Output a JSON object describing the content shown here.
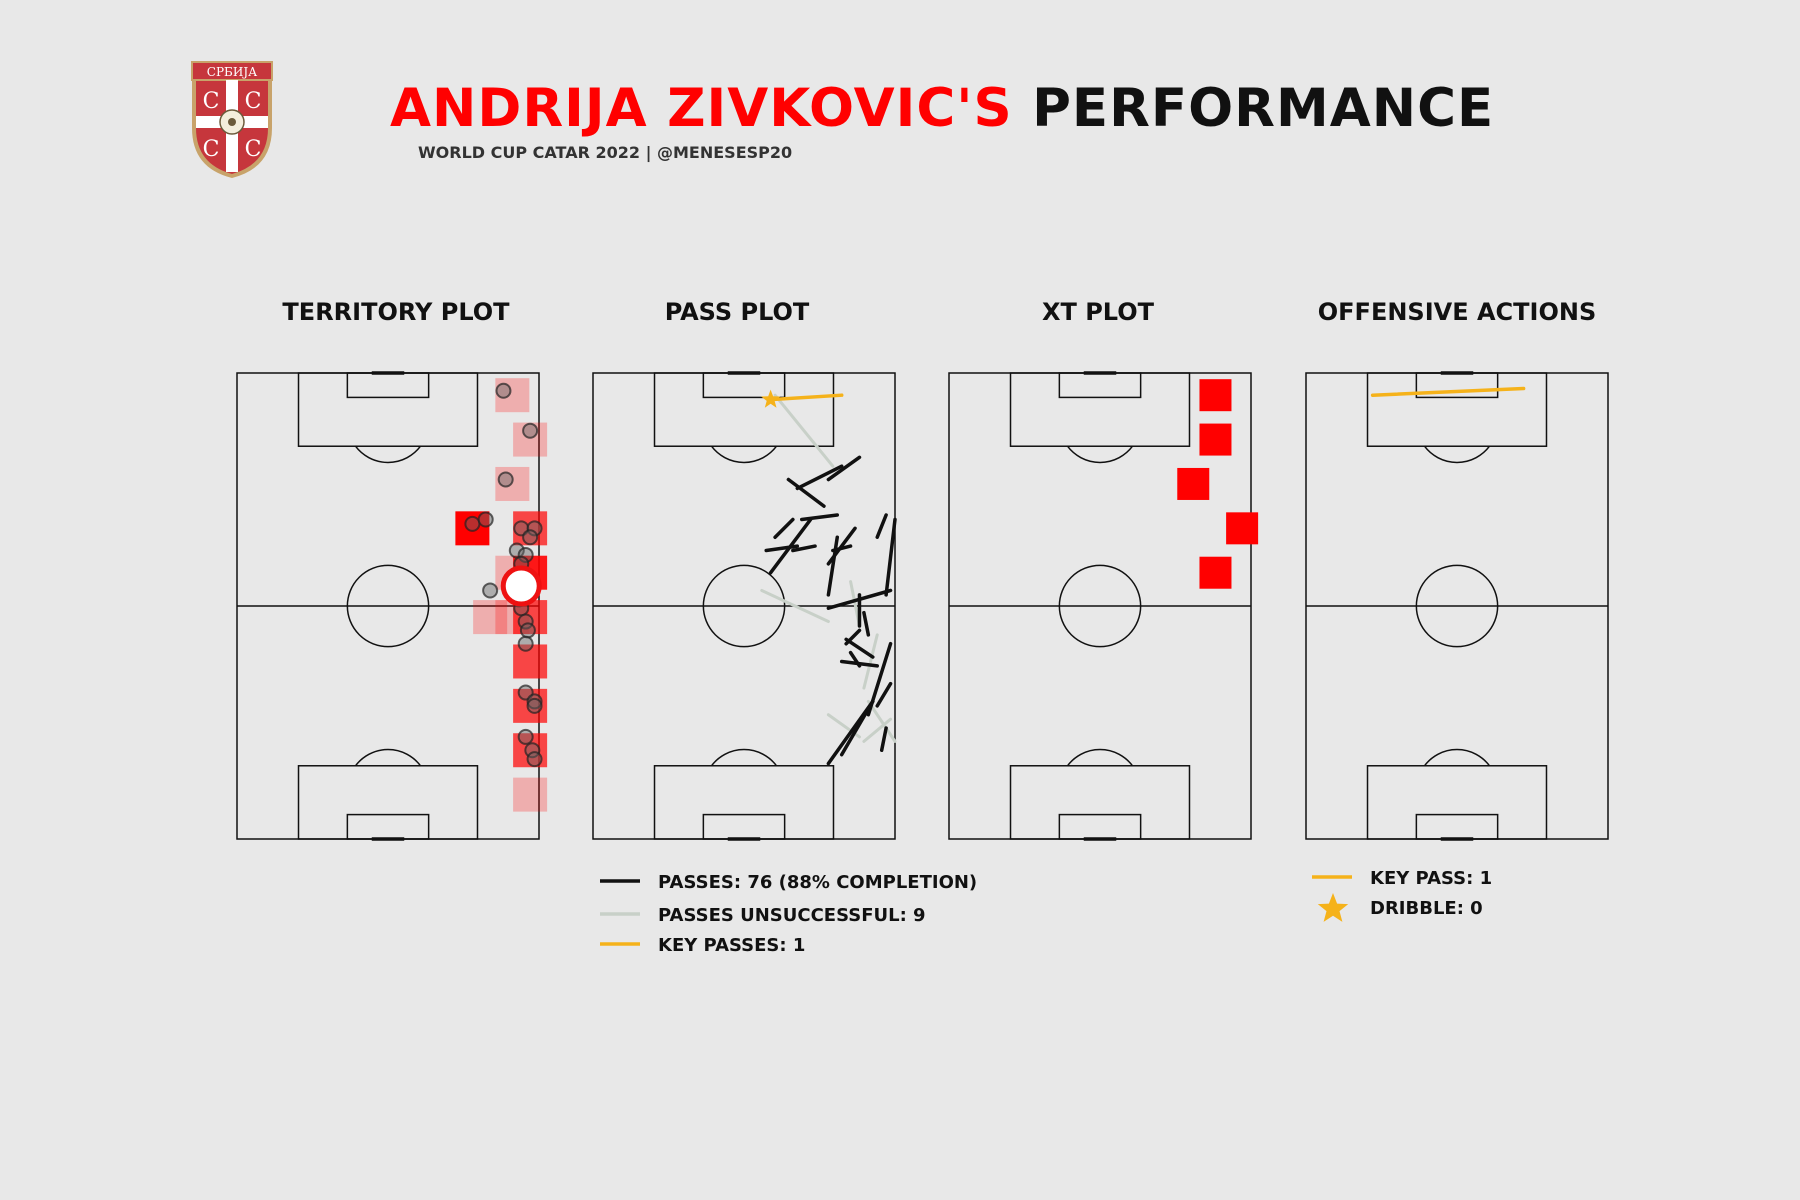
{
  "header": {
    "player_name": "ANDRIJA ZIVKOVIC'S",
    "title_rest": "PERFORMANCE",
    "subtitle": "WORLD CUP CATAR 2022 | @MENESESP20",
    "crest_text": "СРБИЈА"
  },
  "colors": {
    "background": "#e8e8e8",
    "accent_red": "#ff0000",
    "key_pass": "#f5b21a",
    "pass_complete": "#111111",
    "pass_unsuccessful": "#c8d0c8"
  },
  "chart_data": [
    {
      "type": "scatter",
      "title": "TERRITORY PLOT",
      "pitch": {
        "length": 105,
        "width": 68
      },
      "heat_cells": [
        {
          "x": 100,
          "y": 62,
          "alpha": 0.25
        },
        {
          "x": 90,
          "y": 66,
          "alpha": 0.25
        },
        {
          "x": 80,
          "y": 62,
          "alpha": 0.25
        },
        {
          "x": 70,
          "y": 53,
          "alpha": 1.0
        },
        {
          "x": 70,
          "y": 66,
          "alpha": 0.7
        },
        {
          "x": 60,
          "y": 62,
          "alpha": 0.25
        },
        {
          "x": 60,
          "y": 66,
          "alpha": 0.9
        },
        {
          "x": 50,
          "y": 57,
          "alpha": 0.25
        },
        {
          "x": 50,
          "y": 62,
          "alpha": 0.25
        },
        {
          "x": 50,
          "y": 66,
          "alpha": 0.7
        },
        {
          "x": 40,
          "y": 66,
          "alpha": 0.7
        },
        {
          "x": 30,
          "y": 66,
          "alpha": 0.7
        },
        {
          "x": 20,
          "y": 66,
          "alpha": 0.7
        },
        {
          "x": 10,
          "y": 66,
          "alpha": 0.25
        }
      ],
      "touches": [
        {
          "x": 101,
          "y": 60
        },
        {
          "x": 92,
          "y": 66
        },
        {
          "x": 81,
          "y": 60.5
        },
        {
          "x": 71,
          "y": 53
        },
        {
          "x": 72,
          "y": 56
        },
        {
          "x": 70,
          "y": 64
        },
        {
          "x": 70,
          "y": 67
        },
        {
          "x": 68,
          "y": 66
        },
        {
          "x": 65,
          "y": 63
        },
        {
          "x": 64,
          "y": 65
        },
        {
          "x": 62,
          "y": 64
        },
        {
          "x": 58,
          "y": 64.5
        },
        {
          "x": 56,
          "y": 62
        },
        {
          "x": 56,
          "y": 57
        },
        {
          "x": 54,
          "y": 63.5
        },
        {
          "x": 52,
          "y": 64
        },
        {
          "x": 49,
          "y": 65
        },
        {
          "x": 47,
          "y": 65.5
        },
        {
          "x": 44,
          "y": 65
        },
        {
          "x": 33,
          "y": 65
        },
        {
          "x": 31,
          "y": 67
        },
        {
          "x": 30,
          "y": 67
        },
        {
          "x": 23,
          "y": 65
        },
        {
          "x": 20,
          "y": 66.5
        },
        {
          "x": 18,
          "y": 67
        }
      ],
      "average_position": {
        "x": 57,
        "y": 64
      }
    },
    {
      "type": "line",
      "title": "PASS PLOT",
      "pitch": {
        "length": 105,
        "width": 68
      },
      "passes_complete": [
        [
          65,
          39,
          66,
          46
        ],
        [
          65,
          45,
          66,
          50
        ],
        [
          60,
          40,
          72,
          49
        ],
        [
          72,
          47,
          73,
          55
        ],
        [
          81,
          44,
          75,
          52
        ],
        [
          86,
          60,
          81,
          53
        ],
        [
          84,
          56,
          79,
          46
        ],
        [
          68,
          41,
          72,
          45
        ],
        [
          65,
          54,
          66,
          58
        ],
        [
          62,
          53,
          70,
          59
        ],
        [
          55,
          53,
          68,
          55
        ],
        [
          52,
          53,
          56,
          67
        ],
        [
          55,
          66,
          72,
          68
        ],
        [
          68,
          64,
          73,
          66
        ],
        [
          44,
          57,
          47,
          60
        ],
        [
          48,
          60,
          55,
          60
        ],
        [
          39,
          60,
          42,
          58
        ],
        [
          40,
          56,
          39,
          64
        ],
        [
          45,
          57,
          41,
          63
        ],
        [
          46,
          62,
          51,
          61
        ],
        [
          35,
          67,
          30,
          64
        ],
        [
          44,
          67,
          28,
          62
        ],
        [
          19,
          56,
          31,
          63
        ],
        [
          20,
          65,
          25,
          66
        ],
        [
          17,
          53,
          31,
          63
        ]
      ],
      "passes_unsuccessful": [
        [
          100,
          41,
          84,
          54
        ],
        [
          56,
          38,
          49,
          53
        ],
        [
          48,
          60,
          58,
          58
        ],
        [
          34,
          61,
          46,
          64
        ],
        [
          31,
          62,
          22,
          68
        ],
        [
          28,
          53,
          23,
          60
        ],
        [
          22,
          61,
          27,
          67
        ]
      ],
      "key_passes": [
        [
          99,
          40,
          100,
          56
        ]
      ]
    },
    {
      "type": "heatmap",
      "title": "XT PLOT",
      "pitch": {
        "length": 105,
        "width": 68
      },
      "cells": [
        {
          "x": 100,
          "y": 60
        },
        {
          "x": 90,
          "y": 60
        },
        {
          "x": 80,
          "y": 55
        },
        {
          "x": 70,
          "y": 66
        },
        {
          "x": 60,
          "y": 60
        }
      ]
    },
    {
      "type": "line",
      "title": "OFFENSIVE ACTIONS",
      "pitch": {
        "length": 105,
        "width": 68
      },
      "key_passes": [
        [
          100,
          15,
          101.5,
          49
        ]
      ],
      "dribbles": []
    }
  ],
  "legends": {
    "pass": {
      "passes": "PASSES: 76 (88% COMPLETION)",
      "unsuccessful": "PASSES UNSUCCESSFUL: 9",
      "key_passes": "KEY PASSES: 1"
    },
    "offensive": {
      "key_pass": "KEY PASS: 1",
      "dribble": "DRIBBLE: 0"
    }
  }
}
